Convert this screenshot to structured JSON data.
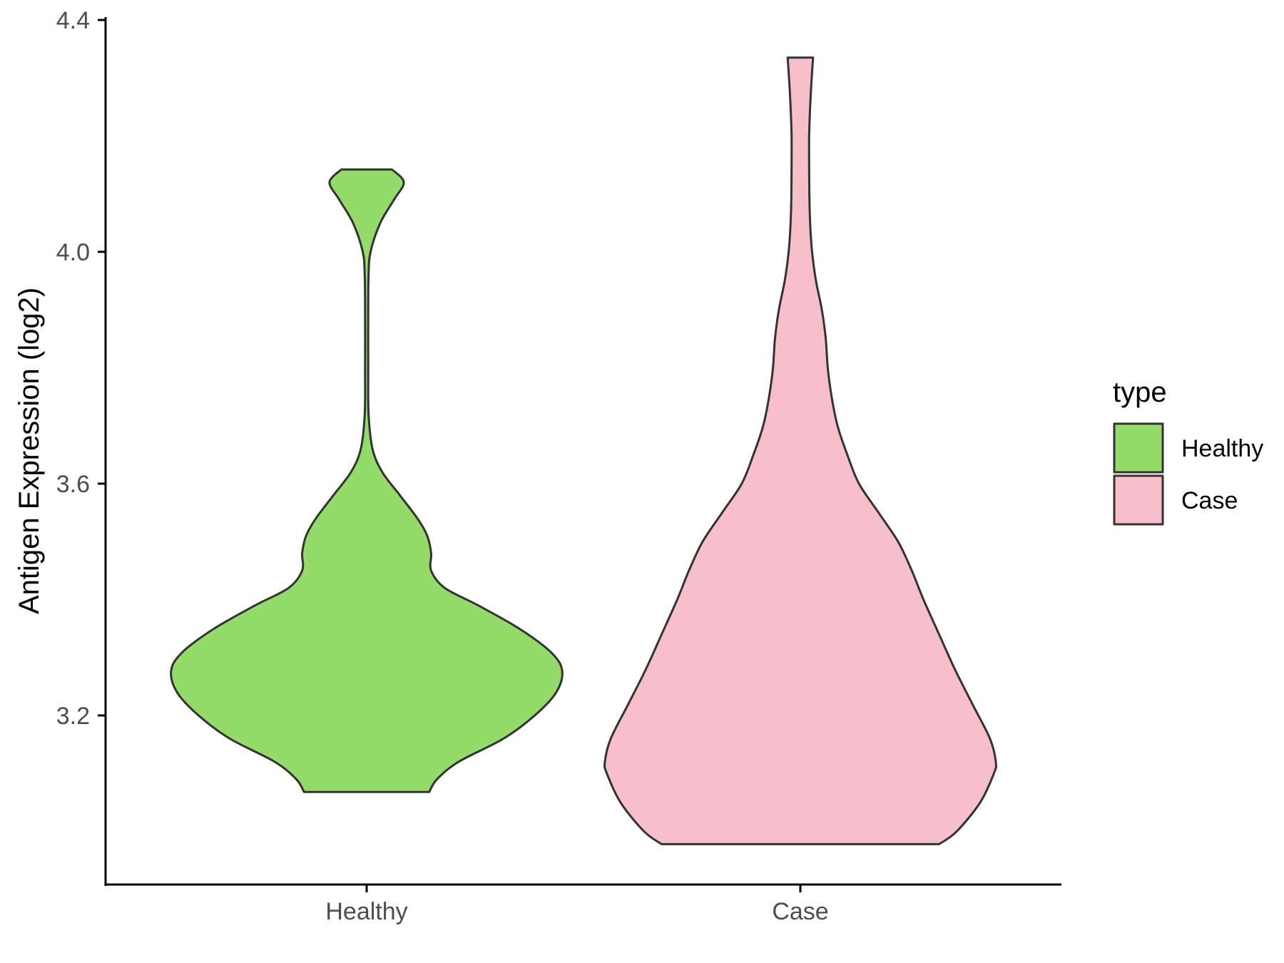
{
  "chart_data": {
    "type": "violin",
    "xlabel": "",
    "ylabel": "Antigen Expression (log2)",
    "ylim": [
      2.9,
      4.41
    ],
    "yticks": [
      "3.2",
      "3.6",
      "4.0",
      "4.4"
    ],
    "categories": [
      "Healthy",
      "Case"
    ],
    "grid": false,
    "legend": {
      "title": "type",
      "position": "right",
      "entries": [
        {
          "label": "Healthy",
          "color": "#93DC6A"
        },
        {
          "label": "Case",
          "color": "#F7BFCB"
        }
      ]
    },
    "series": [
      {
        "category": "Healthy",
        "color": "#93DC6A",
        "min": 3.068,
        "max": 4.142,
        "density_profile": [
          [
            3.068,
            0.32
          ],
          [
            3.09,
            0.36
          ],
          [
            3.12,
            0.47
          ],
          [
            3.16,
            0.7
          ],
          [
            3.2,
            0.86
          ],
          [
            3.24,
            0.97
          ],
          [
            3.278,
            1.0
          ],
          [
            3.31,
            0.94
          ],
          [
            3.35,
            0.78
          ],
          [
            3.39,
            0.57
          ],
          [
            3.42,
            0.4
          ],
          [
            3.45,
            0.33
          ],
          [
            3.48,
            0.33
          ],
          [
            3.51,
            0.31
          ],
          [
            3.54,
            0.26
          ],
          [
            3.58,
            0.17
          ],
          [
            3.62,
            0.08
          ],
          [
            3.66,
            0.03
          ],
          [
            3.72,
            0.01
          ],
          [
            3.8,
            0.008
          ],
          [
            3.9,
            0.008
          ],
          [
            3.96,
            0.01
          ],
          [
            4.0,
            0.02
          ],
          [
            4.05,
            0.07
          ],
          [
            4.09,
            0.14
          ],
          [
            4.12,
            0.19
          ],
          [
            4.142,
            0.13
          ]
        ]
      },
      {
        "category": "Case",
        "color": "#F7BFCB",
        "min": 2.978,
        "max": 4.335,
        "density_profile": [
          [
            2.978,
            0.71
          ],
          [
            3.0,
            0.8
          ],
          [
            3.05,
            0.92
          ],
          [
            3.1,
            0.99
          ],
          [
            3.12,
            1.0
          ],
          [
            3.16,
            0.97
          ],
          [
            3.22,
            0.88
          ],
          [
            3.28,
            0.79
          ],
          [
            3.34,
            0.71
          ],
          [
            3.4,
            0.63
          ],
          [
            3.45,
            0.57
          ],
          [
            3.5,
            0.5
          ],
          [
            3.55,
            0.4
          ],
          [
            3.6,
            0.3
          ],
          [
            3.65,
            0.24
          ],
          [
            3.7,
            0.19
          ],
          [
            3.75,
            0.16
          ],
          [
            3.8,
            0.14
          ],
          [
            3.85,
            0.13
          ],
          [
            3.9,
            0.11
          ],
          [
            3.95,
            0.08
          ],
          [
            4.0,
            0.06
          ],
          [
            4.05,
            0.05
          ],
          [
            4.1,
            0.046
          ],
          [
            4.15,
            0.045
          ],
          [
            4.2,
            0.045
          ],
          [
            4.25,
            0.05
          ],
          [
            4.3,
            0.058
          ],
          [
            4.335,
            0.065
          ]
        ]
      }
    ]
  }
}
